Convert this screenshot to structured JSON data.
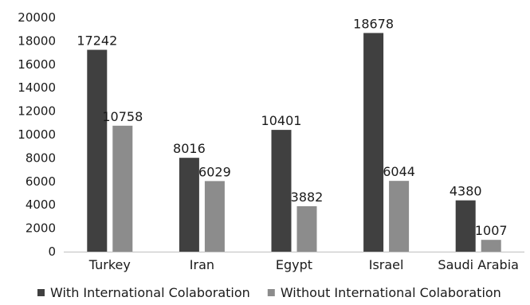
{
  "chart_data": {
    "type": "bar",
    "categories": [
      "Turkey",
      "Iran",
      "Egypt",
      "Israel",
      "Saudi Arabia"
    ],
    "series": [
      {
        "name": "With International Colaboration",
        "values": [
          17242,
          8016,
          10401,
          18678,
          4380
        ],
        "color": "#404040"
      },
      {
        "name": "Without International Colaboration",
        "values": [
          10758,
          6029,
          3882,
          6044,
          1007
        ],
        "color": "#8c8c8c"
      }
    ],
    "ylim": [
      0,
      20000
    ],
    "yticks": [
      0,
      2000,
      4000,
      6000,
      8000,
      10000,
      12000,
      14000,
      16000,
      18000,
      20000
    ],
    "grid": false,
    "legend": "bottom",
    "data_labels": true
  }
}
